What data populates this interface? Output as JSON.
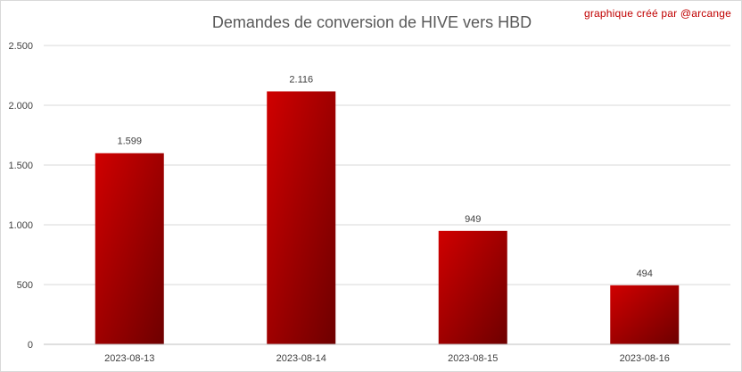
{
  "credit": "graphique créé par @arcange",
  "chart_data": {
    "type": "bar",
    "title": "Demandes de conversion de HIVE vers HBD",
    "categories": [
      "2023-08-13",
      "2023-08-14",
      "2023-08-15",
      "2023-08-16"
    ],
    "values": [
      1599,
      2116,
      949,
      494
    ],
    "value_labels": [
      "1.599",
      "2.116",
      "949",
      "494"
    ],
    "ylim": [
      0,
      2500
    ],
    "yticks": [
      0,
      500,
      1000,
      1500,
      2000,
      2500
    ],
    "ytick_labels": [
      "0",
      "500",
      "1.000",
      "1.500",
      "2.000",
      "2.500"
    ],
    "grid": true,
    "legend": "none",
    "colors": {
      "bar_light": "#d00000",
      "bar_dark": "#6e0000"
    }
  }
}
